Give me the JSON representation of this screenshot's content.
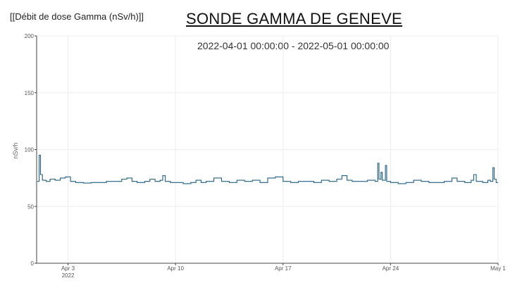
{
  "header": {
    "top_label": "[[Débit de dose Gamma (nSv/h)]]",
    "title": "SONDE GAMMA DE GENEVE",
    "subtitle": "2022-04-01 00:00:00 - 2022-05-01 00:00:00"
  },
  "colors": {
    "line": "#1f5f86",
    "grid": "#eeeeee",
    "axis": "#444444"
  },
  "chart_data": {
    "type": "line",
    "ylabel": "nSv/h",
    "xlabel": "",
    "ylim": [
      0,
      200
    ],
    "xlim": [
      "2022-03-31T23:00",
      "2022-05-01T00:00"
    ],
    "grid": true,
    "yticks": [
      0,
      50,
      100,
      150,
      200
    ],
    "xticks": [
      {
        "value": "2022-04-03",
        "label": "Apr 3",
        "sublabel": "2022"
      },
      {
        "value": "2022-04-10",
        "label": "Apr 10",
        "sublabel": ""
      },
      {
        "value": "2022-04-17",
        "label": "Apr 17",
        "sublabel": ""
      },
      {
        "value": "2022-04-24",
        "label": "Apr 24",
        "sublabel": ""
      },
      {
        "value": "2022-05-01",
        "label": "May 1",
        "sublabel": ""
      }
    ],
    "series": [
      {
        "name": "",
        "points": [
          [
            "2022-04-01T00:00",
            72
          ],
          [
            "2022-04-01T03:00",
            95
          ],
          [
            "2022-04-01T05:00",
            78
          ],
          [
            "2022-04-01T08:00",
            73
          ],
          [
            "2022-04-01T14:00",
            72
          ],
          [
            "2022-04-01T20:00",
            74
          ],
          [
            "2022-04-02T04:00",
            73
          ],
          [
            "2022-04-02T12:00",
            75
          ],
          [
            "2022-04-02T20:00",
            76
          ],
          [
            "2022-04-03T04:00",
            72
          ],
          [
            "2022-04-03T12:00",
            71
          ],
          [
            "2022-04-04T00:00",
            70.5
          ],
          [
            "2022-04-04T12:00",
            71
          ],
          [
            "2022-04-05T00:00",
            71
          ],
          [
            "2022-04-05T12:00",
            72
          ],
          [
            "2022-04-06T00:00",
            72
          ],
          [
            "2022-04-06T12:00",
            74
          ],
          [
            "2022-04-06T20:00",
            75
          ],
          [
            "2022-04-07T04:00",
            72
          ],
          [
            "2022-04-07T12:00",
            71
          ],
          [
            "2022-04-08T00:00",
            72
          ],
          [
            "2022-04-08T08:00",
            74
          ],
          [
            "2022-04-08T16:00",
            72
          ],
          [
            "2022-04-09T00:00",
            73
          ],
          [
            "2022-04-09T04:00",
            77
          ],
          [
            "2022-04-09T08:00",
            72
          ],
          [
            "2022-04-09T16:00",
            71
          ],
          [
            "2022-04-10T00:00",
            71
          ],
          [
            "2022-04-10T12:00",
            70
          ],
          [
            "2022-04-11T00:00",
            71
          ],
          [
            "2022-04-11T08:00",
            73
          ],
          [
            "2022-04-11T16:00",
            71
          ],
          [
            "2022-04-12T00:00",
            72
          ],
          [
            "2022-04-12T12:00",
            75
          ],
          [
            "2022-04-13T00:00",
            72
          ],
          [
            "2022-04-13T12:00",
            71
          ],
          [
            "2022-04-14T00:00",
            73
          ],
          [
            "2022-04-14T12:00",
            72
          ],
          [
            "2022-04-15T00:00",
            73
          ],
          [
            "2022-04-15T12:00",
            71
          ],
          [
            "2022-04-16T00:00",
            75
          ],
          [
            "2022-04-16T12:00",
            76
          ],
          [
            "2022-04-17T00:00",
            72
          ],
          [
            "2022-04-17T12:00",
            71
          ],
          [
            "2022-04-18T00:00",
            72
          ],
          [
            "2022-04-18T12:00",
            72
          ],
          [
            "2022-04-19T00:00",
            71
          ],
          [
            "2022-04-19T12:00",
            73
          ],
          [
            "2022-04-20T00:00",
            72
          ],
          [
            "2022-04-20T12:00",
            74
          ],
          [
            "2022-04-20T20:00",
            77
          ],
          [
            "2022-04-21T04:00",
            73
          ],
          [
            "2022-04-21T12:00",
            72
          ],
          [
            "2022-04-22T00:00",
            72
          ],
          [
            "2022-04-22T12:00",
            73
          ],
          [
            "2022-04-23T00:00",
            72
          ],
          [
            "2022-04-23T04:00",
            88
          ],
          [
            "2022-04-23T06:00",
            74
          ],
          [
            "2022-04-23T09:00",
            80
          ],
          [
            "2022-04-23T11:00",
            73
          ],
          [
            "2022-04-23T16:00",
            86
          ],
          [
            "2022-04-23T18:00",
            72
          ],
          [
            "2022-04-24T00:00",
            71
          ],
          [
            "2022-04-24T12:00",
            70
          ],
          [
            "2022-04-25T00:00",
            71
          ],
          [
            "2022-04-25T12:00",
            73
          ],
          [
            "2022-04-26T00:00",
            72
          ],
          [
            "2022-04-26T12:00",
            71
          ],
          [
            "2022-04-27T00:00",
            71
          ],
          [
            "2022-04-27T12:00",
            72
          ],
          [
            "2022-04-28T00:00",
            75
          ],
          [
            "2022-04-28T08:00",
            72
          ],
          [
            "2022-04-28T20:00",
            71
          ],
          [
            "2022-04-29T06:00",
            73
          ],
          [
            "2022-04-29T10:00",
            78
          ],
          [
            "2022-04-29T14:00",
            72
          ],
          [
            "2022-04-30T00:00",
            71
          ],
          [
            "2022-04-30T08:00",
            73
          ],
          [
            "2022-04-30T12:00",
            72
          ],
          [
            "2022-04-30T16:00",
            84
          ],
          [
            "2022-04-30T18:00",
            74
          ],
          [
            "2022-04-30T21:00",
            71
          ],
          [
            "2022-05-01T00:00",
            71
          ]
        ]
      }
    ]
  }
}
